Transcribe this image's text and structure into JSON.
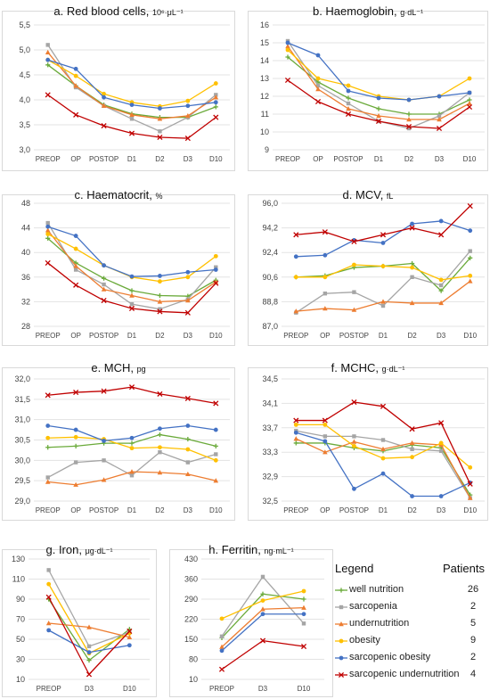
{
  "colors": {
    "well nutrition": "#6aaa3a",
    "sarcopenia": "#a5a5a5",
    "undernutrition": "#ed7d31",
    "obesity": "#ffc000",
    "sarcopenic obesity": "#4472c4",
    "sarcopenic undernutrition": "#c00000"
  },
  "legend": {
    "title": "Legend",
    "count_header": "Patients",
    "items": [
      {
        "name": "well nutrition",
        "count": "26",
        "marker": "plus"
      },
      {
        "name": "sarcopenia",
        "count": "2",
        "marker": "square"
      },
      {
        "name": "undernutrition",
        "count": "5",
        "marker": "triangle"
      },
      {
        "name": "obesity",
        "count": "9",
        "marker": "circle"
      },
      {
        "name": "sarcopenic obesity",
        "count": "2",
        "marker": "circle"
      },
      {
        "name": "sarcopenic undernutrition",
        "count": "4",
        "marker": "x"
      }
    ]
  },
  "chart_data": [
    {
      "type": "line",
      "title": "a. Red blood cells,",
      "unit": "10⁶·μL⁻¹",
      "categories": [
        "PREOP",
        "OP",
        "POSTOP",
        "D1",
        "D2",
        "D3",
        "D10"
      ],
      "ylim": [
        3.0,
        5.5
      ],
      "yticks": [
        "3,0",
        "3,5",
        "4,0",
        "4,5",
        "5,0",
        "5,5"
      ],
      "grid": true,
      "series": [
        {
          "name": "well nutrition",
          "values": [
            4.7,
            4.28,
            3.9,
            3.72,
            3.65,
            3.65,
            3.86
          ]
        },
        {
          "name": "sarcopenia",
          "values": [
            5.1,
            4.25,
            3.88,
            3.62,
            3.37,
            3.65,
            4.1
          ]
        },
        {
          "name": "undernutrition",
          "values": [
            4.95,
            4.28,
            3.88,
            3.7,
            3.62,
            3.68,
            4.05
          ]
        },
        {
          "name": "obesity",
          "values": [
            4.8,
            4.48,
            4.12,
            3.95,
            3.87,
            3.98,
            4.33
          ]
        },
        {
          "name": "sarcopenic obesity",
          "values": [
            4.8,
            4.62,
            4.05,
            3.9,
            3.83,
            3.88,
            3.95
          ]
        },
        {
          "name": "sarcopenic undernutrition",
          "values": [
            4.1,
            3.7,
            3.48,
            3.33,
            3.25,
            3.23,
            3.65
          ]
        }
      ]
    },
    {
      "type": "line",
      "title": "b. Haemoglobin,",
      "unit": "g·dL⁻¹",
      "categories": [
        "PREOP",
        "OP",
        "POSTOP",
        "D1",
        "D2",
        "D3",
        "D10"
      ],
      "ylim": [
        9,
        16
      ],
      "yticks": [
        "9",
        "10",
        "11",
        "12",
        "13",
        "14",
        "15",
        "16"
      ],
      "grid": true,
      "series": [
        {
          "name": "well nutrition",
          "values": [
            14.2,
            12.8,
            11.9,
            11.3,
            11.0,
            11.0,
            11.8
          ]
        },
        {
          "name": "sarcopenia",
          "values": [
            15.1,
            12.6,
            11.6,
            10.6,
            10.2,
            10.9,
            12.2
          ]
        },
        {
          "name": "undernutrition",
          "values": [
            14.8,
            12.4,
            11.3,
            10.9,
            10.7,
            10.7,
            11.6
          ]
        },
        {
          "name": "obesity",
          "values": [
            14.6,
            13.0,
            12.6,
            12.0,
            11.8,
            12.0,
            13.0
          ]
        },
        {
          "name": "sarcopenic obesity",
          "values": [
            15.0,
            14.3,
            12.3,
            11.9,
            11.8,
            12.0,
            12.2
          ]
        },
        {
          "name": "sarcopenic undernutrition",
          "values": [
            12.9,
            11.7,
            11.0,
            10.6,
            10.3,
            10.2,
            11.4
          ]
        }
      ]
    },
    {
      "type": "line",
      "title": "c. Haematocrit,",
      "unit": "%",
      "categories": [
        "PREOP",
        "OP",
        "POSTOP",
        "D1",
        "D2",
        "D3",
        "D10"
      ],
      "ylim": [
        28,
        48
      ],
      "yticks": [
        "28",
        "32",
        "36",
        "40",
        "44",
        "48"
      ],
      "grid": true,
      "series": [
        {
          "name": "well nutrition",
          "values": [
            42.3,
            38.3,
            35.8,
            33.8,
            33.0,
            32.9,
            35.5
          ]
        },
        {
          "name": "sarcopenia",
          "values": [
            44.8,
            37.2,
            34.8,
            31.6,
            30.8,
            32.4,
            37.6
          ]
        },
        {
          "name": "undernutrition",
          "values": [
            43.6,
            37.8,
            34.0,
            33.0,
            32.0,
            32.2,
            35.2
          ]
        },
        {
          "name": "obesity",
          "values": [
            43.0,
            40.6,
            37.9,
            36.0,
            35.3,
            36.0,
            39.4
          ]
        },
        {
          "name": "sarcopenic obesity",
          "values": [
            44.2,
            42.7,
            37.9,
            36.1,
            36.2,
            36.8,
            37.2
          ]
        },
        {
          "name": "sarcopenic undernutrition",
          "values": [
            38.3,
            34.7,
            32.2,
            30.9,
            30.4,
            30.2,
            35.0
          ]
        }
      ]
    },
    {
      "type": "line",
      "title": "d. MCV,",
      "unit": "fL",
      "categories": [
        "PREOP",
        "OP",
        "POSTOP",
        "D1",
        "D2",
        "D3",
        "D10"
      ],
      "ylim": [
        87.0,
        96.0
      ],
      "yticks": [
        "87,0",
        "88,8",
        "90,6",
        "92,4",
        "94,2",
        "96,0"
      ],
      "grid": true,
      "series": [
        {
          "name": "well nutrition",
          "values": [
            90.6,
            90.7,
            91.3,
            91.4,
            91.6,
            89.6,
            92.0
          ]
        },
        {
          "name": "sarcopenia",
          "values": [
            88.0,
            89.4,
            89.5,
            88.5,
            90.6,
            90.0,
            92.5
          ]
        },
        {
          "name": "undernutrition",
          "values": [
            88.1,
            88.3,
            88.2,
            88.8,
            88.7,
            88.7,
            90.3
          ]
        },
        {
          "name": "obesity",
          "values": [
            90.6,
            90.6,
            91.5,
            91.4,
            91.3,
            90.4,
            90.7
          ]
        },
        {
          "name": "sarcopenic obesity",
          "values": [
            92.1,
            92.2,
            93.3,
            93.1,
            94.5,
            94.7,
            94.0
          ]
        },
        {
          "name": "sarcopenic undernutrition",
          "values": [
            93.7,
            93.9,
            93.2,
            93.7,
            94.2,
            93.7,
            95.8
          ]
        }
      ]
    },
    {
      "type": "line",
      "title": "e. MCH,",
      "unit": "pg",
      "categories": [
        "PREOP",
        "OP",
        "POSTOP",
        "D1",
        "D2",
        "D3",
        "D10"
      ],
      "ylim": [
        29.0,
        32.0
      ],
      "yticks": [
        "29,0",
        "29,5",
        "30,0",
        "30,5",
        "31,0",
        "31,5",
        "32,0"
      ],
      "grid": true,
      "series": [
        {
          "name": "well nutrition",
          "values": [
            30.32,
            30.35,
            30.42,
            30.42,
            30.63,
            30.52,
            30.35
          ]
        },
        {
          "name": "sarcopenia",
          "values": [
            29.58,
            29.95,
            30.0,
            29.63,
            30.2,
            29.95,
            30.15
          ]
        },
        {
          "name": "undernutrition",
          "values": [
            29.47,
            29.4,
            29.52,
            29.72,
            29.7,
            29.66,
            29.5
          ]
        },
        {
          "name": "obesity",
          "values": [
            30.55,
            30.57,
            30.52,
            30.3,
            30.32,
            30.27,
            30.0
          ]
        },
        {
          "name": "sarcopenic obesity",
          "values": [
            30.85,
            30.75,
            30.48,
            30.55,
            30.78,
            30.85,
            30.75
          ]
        },
        {
          "name": "sarcopenic undernutrition",
          "values": [
            31.6,
            31.67,
            31.7,
            31.8,
            31.63,
            31.52,
            31.4
          ]
        }
      ]
    },
    {
      "type": "line",
      "title": "f. MCHC,",
      "unit": "g·dL⁻¹",
      "categories": [
        "PREOP",
        "OP",
        "POSTOP",
        "D1",
        "D2",
        "D3",
        "D10"
      ],
      "ylim": [
        32.5,
        34.5
      ],
      "yticks": [
        "32,5",
        "32,9",
        "33,3",
        "33,7",
        "34,1",
        "34,5"
      ],
      "grid": true,
      "series": [
        {
          "name": "well nutrition",
          "values": [
            33.45,
            33.45,
            33.37,
            33.32,
            33.42,
            33.37,
            32.6
          ]
        },
        {
          "name": "sarcopenia",
          "values": [
            33.65,
            33.56,
            33.56,
            33.5,
            33.35,
            33.32,
            32.55
          ]
        },
        {
          "name": "undernutrition",
          "values": [
            33.52,
            33.3,
            33.47,
            33.35,
            33.45,
            33.42,
            32.55
          ]
        },
        {
          "name": "obesity",
          "values": [
            33.75,
            33.75,
            33.4,
            33.2,
            33.22,
            33.45,
            33.05
          ]
        },
        {
          "name": "sarcopenic obesity",
          "values": [
            33.62,
            33.48,
            32.7,
            32.95,
            32.58,
            32.58,
            32.8
          ]
        },
        {
          "name": "sarcopenic undernutrition",
          "values": [
            33.82,
            33.82,
            34.12,
            34.05,
            33.68,
            33.78,
            32.78
          ]
        }
      ]
    },
    {
      "type": "line",
      "title": "g. Iron,",
      "unit": "μg·dL⁻¹",
      "categories": [
        "PREOP",
        "D3",
        "D10"
      ],
      "ylim": [
        10,
        130
      ],
      "yticks": [
        "10",
        "30",
        "50",
        "70",
        "90",
        "110",
        "130"
      ],
      "grid": true,
      "series": [
        {
          "name": "well nutrition",
          "values": [
            90,
            29,
            60
          ]
        },
        {
          "name": "sarcopenia",
          "values": [
            119,
            43,
            57
          ]
        },
        {
          "name": "undernutrition",
          "values": [
            66,
            62,
            52
          ]
        },
        {
          "name": "obesity",
          "values": [
            105,
            36,
            56
          ]
        },
        {
          "name": "sarcopenic obesity",
          "values": [
            59,
            37,
            44
          ]
        },
        {
          "name": "sarcopenic undernutrition",
          "values": [
            92,
            15,
            58
          ]
        }
      ]
    },
    {
      "type": "line",
      "title": "h. Ferritin,",
      "unit": "ng·mL⁻¹",
      "categories": [
        "PREOP",
        "D3",
        "D10"
      ],
      "ylim": [
        10,
        430
      ],
      "yticks": [
        "10",
        "80",
        "150",
        "220",
        "290",
        "360",
        "430"
      ],
      "grid": true,
      "series": [
        {
          "name": "well nutrition",
          "values": [
            155,
            308,
            290
          ]
        },
        {
          "name": "sarcopenia",
          "values": [
            160,
            368,
            205
          ]
        },
        {
          "name": "undernutrition",
          "values": [
            123,
            255,
            260
          ]
        },
        {
          "name": "obesity",
          "values": [
            222,
            285,
            318
          ]
        },
        {
          "name": "sarcopenic obesity",
          "values": [
            110,
            238,
            238
          ]
        },
        {
          "name": "sarcopenic undernutrition",
          "values": [
            45,
            145,
            125
          ]
        }
      ]
    }
  ]
}
